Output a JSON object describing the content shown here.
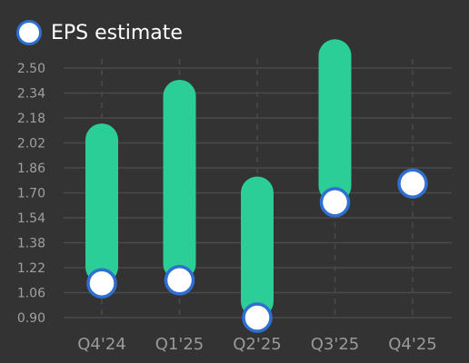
{
  "chart_data": {
    "type": "bar",
    "subtype": "floating-range-with-marker",
    "categories": [
      "Q4'24",
      "Q1'25",
      "Q2'25",
      "Q3'25",
      "Q4'25"
    ],
    "series": [
      {
        "name": "EPS estimate",
        "values": [
          1.12,
          1.14,
          0.9,
          1.64,
          1.76
        ],
        "marker_color": "#ffffff",
        "marker_border": "#2f6fd1"
      },
      {
        "name": "",
        "ranges": [
          [
            1.12,
            2.04
          ],
          [
            1.14,
            2.32
          ],
          [
            0.9,
            1.7
          ],
          [
            1.64,
            2.58
          ],
          null
        ],
        "color": "#2bce96"
      }
    ],
    "y_ticks": [
      "0.90",
      "1.06",
      "1.22",
      "1.38",
      "1.54",
      "1.70",
      "1.86",
      "2.02",
      "2.18",
      "2.34",
      "2.50"
    ],
    "ylim": [
      0.9,
      2.5
    ],
    "xlabel": "",
    "ylabel": "",
    "legend_position": "top-left",
    "grid": {
      "horizontal": true,
      "vertical": "dashed"
    },
    "colors": {
      "background": "#333333",
      "grid": "#4a4a4a",
      "tick_text": "#a0a0a0",
      "category_text": "#9a9a9a",
      "bar": "#2bce96",
      "marker_fill": "#ffffff",
      "marker_border": "#2f6fd1"
    }
  },
  "legend": {
    "label": "EPS estimate"
  }
}
